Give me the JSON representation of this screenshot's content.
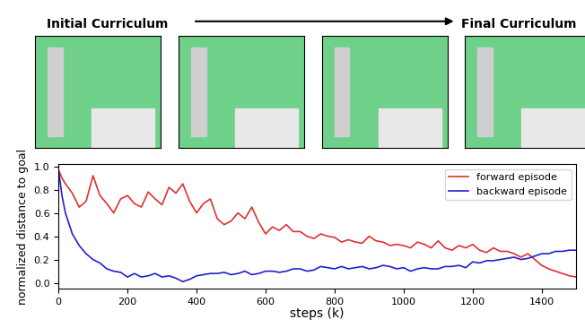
{
  "header": {
    "left_title": "Initial Curriculum",
    "right_title": "Final Curriculum"
  },
  "chart_data": {
    "type": "line",
    "xlabel": "steps (k)",
    "ylabel": "normalized distance to goal",
    "x": [
      0,
      10,
      20,
      40,
      60,
      80,
      100,
      120,
      140,
      160,
      180,
      200,
      220,
      240,
      260,
      280,
      300,
      320,
      340,
      360,
      380,
      400,
      420,
      440,
      460,
      480,
      500,
      520,
      540,
      560,
      580,
      600,
      620,
      640,
      660,
      680,
      700,
      720,
      740,
      760,
      780,
      800,
      820,
      840,
      860,
      880,
      900,
      920,
      940,
      960,
      980,
      1000,
      1020,
      1040,
      1060,
      1080,
      1100,
      1120,
      1140,
      1160,
      1180,
      1200,
      1220,
      1240,
      1260,
      1280,
      1300,
      1320,
      1340,
      1360,
      1380,
      1400,
      1420,
      1440,
      1460,
      1480,
      1500
    ],
    "series": [
      {
        "name": "forward episode",
        "color": "#e03030",
        "values": [
          0.97,
          0.9,
          0.85,
          0.77,
          0.65,
          0.7,
          0.92,
          0.75,
          0.68,
          0.6,
          0.72,
          0.75,
          0.68,
          0.65,
          0.78,
          0.72,
          0.67,
          0.82,
          0.77,
          0.85,
          0.7,
          0.6,
          0.68,
          0.72,
          0.55,
          0.5,
          0.53,
          0.6,
          0.55,
          0.65,
          0.52,
          0.42,
          0.48,
          0.45,
          0.5,
          0.44,
          0.44,
          0.4,
          0.38,
          0.42,
          0.4,
          0.39,
          0.35,
          0.37,
          0.35,
          0.34,
          0.4,
          0.36,
          0.35,
          0.32,
          0.33,
          0.32,
          0.3,
          0.35,
          0.33,
          0.3,
          0.36,
          0.3,
          0.28,
          0.32,
          0.3,
          0.33,
          0.28,
          0.26,
          0.3,
          0.27,
          0.27,
          0.25,
          0.22,
          0.25,
          0.2,
          0.15,
          0.12,
          0.1,
          0.08,
          0.06,
          0.05
        ]
      },
      {
        "name": "backward episode",
        "color": "#2020d0",
        "values": [
          0.97,
          0.75,
          0.6,
          0.42,
          0.32,
          0.25,
          0.2,
          0.17,
          0.12,
          0.1,
          0.09,
          0.05,
          0.08,
          0.05,
          0.06,
          0.08,
          0.05,
          0.06,
          0.04,
          0.01,
          0.03,
          0.06,
          0.07,
          0.08,
          0.08,
          0.09,
          0.07,
          0.08,
          0.1,
          0.07,
          0.08,
          0.1,
          0.1,
          0.09,
          0.1,
          0.12,
          0.12,
          0.1,
          0.11,
          0.14,
          0.13,
          0.12,
          0.14,
          0.12,
          0.13,
          0.14,
          0.12,
          0.13,
          0.15,
          0.14,
          0.12,
          0.13,
          0.1,
          0.12,
          0.13,
          0.12,
          0.12,
          0.14,
          0.14,
          0.15,
          0.13,
          0.18,
          0.17,
          0.19,
          0.19,
          0.2,
          0.21,
          0.22,
          0.2,
          0.21,
          0.23,
          0.25,
          0.25,
          0.27,
          0.27,
          0.28,
          0.28
        ]
      }
    ],
    "xlim": [
      0,
      1500
    ],
    "xticks": [
      0,
      200,
      400,
      600,
      800,
      1000,
      1200,
      1400
    ],
    "ylim": [
      -0.05,
      1.02
    ],
    "yticks": [
      {
        "value": 0,
        "label": "0.0"
      },
      {
        "value": 0.2,
        "label": "0.2"
      },
      {
        "value": 0.4,
        "label": "0.4"
      },
      {
        "value": 0.6,
        "label": "0.6"
      },
      {
        "value": 0.8,
        "label": "0.8"
      },
      {
        "value": 1.0,
        "label": "1.0"
      }
    ],
    "legend": "upper right"
  }
}
